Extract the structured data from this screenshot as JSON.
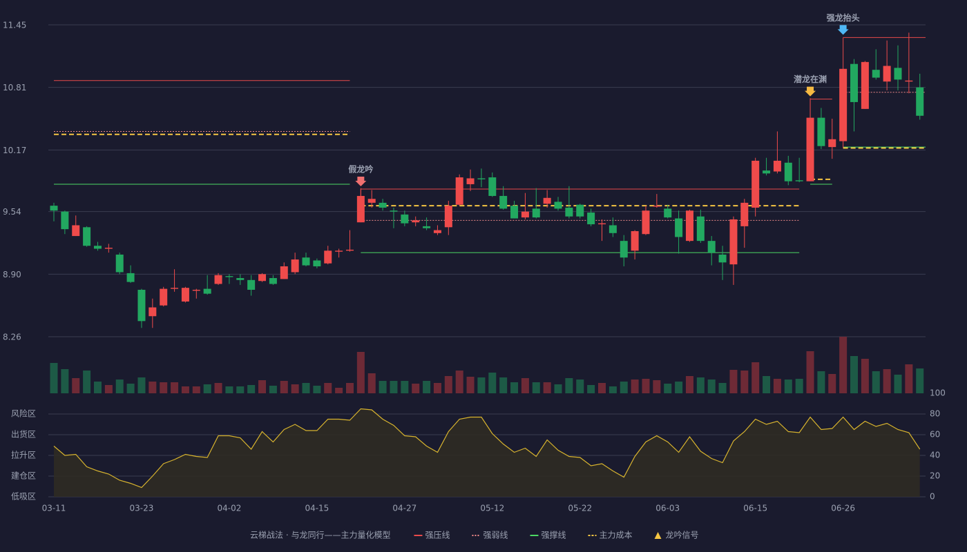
{
  "chart_data": {
    "type": "candlestick",
    "categories": [
      "03-11",
      null,
      null,
      null,
      null,
      null,
      null,
      null,
      "03-23",
      null,
      null,
      null,
      null,
      null,
      null,
      null,
      "04-02",
      null,
      null,
      null,
      null,
      null,
      null,
      null,
      "04-15",
      null,
      null,
      null,
      null,
      null,
      null,
      null,
      "04-27",
      null,
      null,
      null,
      null,
      null,
      null,
      null,
      "05-12",
      null,
      null,
      null,
      null,
      null,
      null,
      null,
      "05-22",
      null,
      null,
      null,
      null,
      null,
      null,
      null,
      "06-03",
      null,
      null,
      null,
      null,
      null,
      null,
      null,
      "06-15",
      null,
      null,
      null,
      null,
      null,
      null,
      null,
      "06-26",
      null,
      null,
      null,
      null,
      null,
      null,
      null
    ],
    "open": [
      9.6,
      9.54,
      9.29,
      9.38,
      9.19,
      9.16,
      9.1,
      8.91,
      8.74,
      8.47,
      8.58,
      8.75,
      8.62,
      8.73,
      8.75,
      8.8,
      8.88,
      8.86,
      8.84,
      8.83,
      8.86,
      8.85,
      8.92,
      9.07,
      9.04,
      9.01,
      9.13,
      9.14,
      9.43,
      9.63,
      9.63,
      9.55,
      9.51,
      9.43,
      9.39,
      9.32,
      9.38,
      9.61,
      9.82,
      9.88,
      9.89,
      9.7,
      9.6,
      9.48,
      9.57,
      9.62,
      9.64,
      9.58,
      9.61,
      9.53,
      9.41,
      9.4,
      9.24,
      9.14,
      9.31,
      9.59,
      9.57,
      9.47,
      9.24,
      9.49,
      9.24,
      9.1,
      9.0,
      9.39,
      9.58,
      9.96,
      9.95,
      10.04,
      9.86,
      9.85,
      10.5,
      10.2,
      10.26,
      11.05,
      10.59,
      10.99,
      10.87,
      11.01,
      10.87,
      10.81
    ],
    "high": [
      9.63,
      9.55,
      9.5,
      9.39,
      9.23,
      9.21,
      9.12,
      8.99,
      8.75,
      8.65,
      8.77,
      8.95,
      8.77,
      8.75,
      8.89,
      8.91,
      8.9,
      8.9,
      8.89,
      8.91,
      8.89,
      9.02,
      9.12,
      9.12,
      9.06,
      9.19,
      9.16,
      9.35,
      9.78,
      9.76,
      9.67,
      9.58,
      9.55,
      9.49,
      9.48,
      9.4,
      9.65,
      9.92,
      9.97,
      9.98,
      9.94,
      9.8,
      9.65,
      9.73,
      9.78,
      9.76,
      9.69,
      9.8,
      9.62,
      9.57,
      9.46,
      9.48,
      9.3,
      9.35,
      9.6,
      9.72,
      9.61,
      9.55,
      9.56,
      9.56,
      9.29,
      9.19,
      9.49,
      9.67,
      10.09,
      10.09,
      10.36,
      10.11,
      10.09,
      10.7,
      10.6,
      10.49,
      11.0,
      11.1,
      11.08,
      11.2,
      11.29,
      11.24,
      11.37,
      10.95
    ],
    "low": [
      9.44,
      9.31,
      9.29,
      9.18,
      9.14,
      9.12,
      8.9,
      8.81,
      8.35,
      8.35,
      8.57,
      8.72,
      8.61,
      8.65,
      8.69,
      8.79,
      8.8,
      8.79,
      8.68,
      8.82,
      8.79,
      8.85,
      8.9,
      8.98,
      8.96,
      9.0,
      9.07,
      9.13,
      9.43,
      9.58,
      9.55,
      9.37,
      9.39,
      9.39,
      9.35,
      9.3,
      9.3,
      9.6,
      9.75,
      9.79,
      9.69,
      9.56,
      9.47,
      9.46,
      9.47,
      9.58,
      9.55,
      9.47,
      9.47,
      9.39,
      9.24,
      9.28,
      8.98,
      9.05,
      9.3,
      9.58,
      9.47,
      9.11,
      9.23,
      9.22,
      8.99,
      8.84,
      8.79,
      9.17,
      9.49,
      9.91,
      9.93,
      9.81,
      9.84,
      9.85,
      10.18,
      10.08,
      10.19,
      10.36,
      10.59,
      10.89,
      10.78,
      10.78,
      10.75,
      10.48
    ],
    "close": [
      9.55,
      9.36,
      9.4,
      9.19,
      9.16,
      9.17,
      8.92,
      8.82,
      8.42,
      8.56,
      8.75,
      8.76,
      8.76,
      8.74,
      8.7,
      8.89,
      8.87,
      8.84,
      8.74,
      8.9,
      8.8,
      8.98,
      9.05,
      8.99,
      8.98,
      9.14,
      9.14,
      9.15,
      9.7,
      9.67,
      9.58,
      9.54,
      9.42,
      9.45,
      9.37,
      9.35,
      9.6,
      9.89,
      9.88,
      9.87,
      9.7,
      9.57,
      9.47,
      9.54,
      9.48,
      9.68,
      9.57,
      9.49,
      9.49,
      9.41,
      9.42,
      9.32,
      9.07,
      9.34,
      9.55,
      9.6,
      9.48,
      9.28,
      9.55,
      9.24,
      9.12,
      9.02,
      9.46,
      9.63,
      10.06,
      9.93,
      10.06,
      9.85,
      9.85,
      10.5,
      10.21,
      10.28,
      11.0,
      10.66,
      11.07,
      10.91,
      11.03,
      10.89,
      10.88,
      10.52
    ],
    "volume": [
      44,
      35,
      22,
      33,
      17,
      12,
      20,
      14,
      23,
      17,
      16,
      16,
      10,
      10,
      13,
      15,
      10,
      10,
      12,
      19,
      11,
      18,
      13,
      15,
      11,
      15,
      8,
      15,
      60,
      29,
      18,
      18,
      18,
      14,
      18,
      15,
      25,
      33,
      24,
      23,
      30,
      23,
      16,
      22,
      16,
      16,
      13,
      22,
      20,
      12,
      15,
      10,
      17,
      20,
      21,
      19,
      14,
      17,
      25,
      23,
      20,
      15,
      34,
      33,
      45,
      25,
      21,
      20,
      21,
      61,
      32,
      28,
      82,
      54,
      50,
      32,
      35,
      27,
      42,
      36
    ],
    "oscillator": [
      49,
      40,
      41,
      29,
      25,
      22,
      16,
      13,
      9,
      20,
      32,
      36,
      41,
      39,
      38,
      59,
      59,
      57,
      46,
      63,
      53,
      65,
      70,
      64,
      64,
      75,
      75,
      74,
      85,
      84,
      75,
      69,
      59,
      58,
      49,
      43,
      63,
      75,
      77,
      77,
      61,
      51,
      43,
      47,
      39,
      55,
      45,
      39,
      38,
      30,
      32,
      25,
      19,
      39,
      53,
      59,
      53,
      43,
      58,
      44,
      37,
      33,
      54,
      63,
      75,
      70,
      73,
      63,
      62,
      77,
      65,
      66,
      77,
      65,
      73,
      68,
      71,
      65,
      62,
      46
    ],
    "up_color": "#ef4b4b",
    "down_color": "#22a860",
    "volume_up_color": "#6e2a36",
    "volume_down_color": "#1d5a46",
    "oscillator_color": "#d8b42e",
    "ylim": [
      8.26,
      11.45
    ],
    "yticks": [
      8.26,
      {
        "value": 8.9,
        "label": "8.90"
      },
      9.54,
      10.17,
      10.81,
      11.45
    ],
    "y2lim": [
      0,
      100
    ],
    "y2ticks": [
      0,
      20,
      40,
      60,
      80,
      100
    ],
    "y2tick_colors": [
      "#f0405a",
      "#f05a5a",
      "#4a8cff",
      "#e040e0",
      "#f0a030",
      "#40e040"
    ],
    "zones": [
      {
        "label": "风险区",
        "value": 80,
        "color": "#f0a030"
      },
      {
        "label": "出货区",
        "value": 60,
        "color": "#e040e0"
      },
      {
        "label": "拉升区",
        "value": 40,
        "color": "#4a8cff"
      },
      {
        "label": "建仓区",
        "value": 20,
        "color": "#f05a5a"
      },
      {
        "label": "低吸区",
        "value": 0,
        "color": "#f0405a"
      }
    ],
    "lines": [
      {
        "key": "pressure",
        "name": "强压线",
        "color": "#e84a4a",
        "style": "solid"
      },
      {
        "key": "weak",
        "name": "强弱线",
        "color": "#f08a8a",
        "style": "dotted"
      },
      {
        "key": "support",
        "name": "强撑线",
        "color": "#4cd964",
        "style": "solid"
      },
      {
        "key": "cost",
        "name": "主力成本",
        "color": "#f5c542",
        "style": "dashed"
      }
    ],
    "levels": [
      {
        "start": 0,
        "end": 27,
        "pressure": 10.88,
        "weak": 10.36,
        "support": 9.82,
        "cost": 10.33
      },
      {
        "start": 28,
        "end": 68,
        "pressure": 9.77,
        "weak": 9.45,
        "support": 9.12,
        "cost": 9.6
      },
      {
        "start": 69,
        "end": 71,
        "pressure": 10.69,
        "weak": null,
        "support": 9.82,
        "cost": 9.87
      },
      {
        "start": 72,
        "end": 79,
        "pressure": 11.32,
        "weak": 10.76,
        "support": 10.2,
        "cost": 10.19
      }
    ],
    "signals": [
      {
        "level": 1,
        "label": "假龙吟",
        "color": "#f07070"
      },
      {
        "level": 2,
        "label": "潜龙在渊",
        "color": "#f5b942"
      },
      {
        "level": 3,
        "label": "强龙抬头",
        "color": "#4fb8f5"
      }
    ],
    "legend_title": "云梯战法 · 与龙同行——主力量化模型",
    "signal_legend": {
      "name": "龙吟信号",
      "color": "#f5c542"
    }
  }
}
